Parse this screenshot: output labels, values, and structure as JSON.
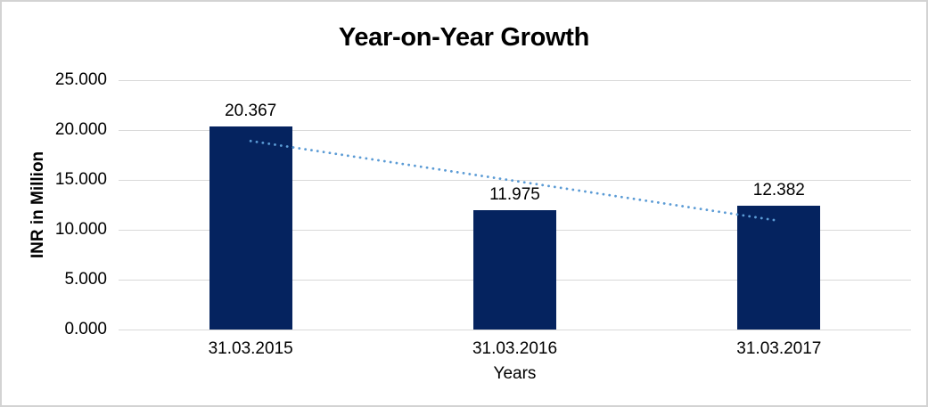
{
  "chart_data": {
    "type": "bar",
    "title": "Year-on-Year Growth",
    "categories": [
      "31.03.2015",
      "31.03.2016",
      "31.03.2017"
    ],
    "values": [
      20.367,
      11.975,
      12.382
    ],
    "data_labels": [
      "20.367",
      "11.975",
      "12.382"
    ],
    "xlabel": "Years",
    "ylabel": "INR in Million",
    "ylim": [
      0,
      25
    ],
    "ytick_step": 5,
    "ytick_labels": [
      "0.000",
      "5.000",
      "10.000",
      "15.000",
      "20.000",
      "25.000"
    ],
    "grid": true,
    "legend": "none",
    "trendline": {
      "type": "linear",
      "style": "dotted",
      "x_categories": [
        "31.03.2015",
        "31.03.2017"
      ],
      "y_values": [
        18.9,
        10.9
      ]
    },
    "colors": {
      "bar": "#05235F",
      "trendline": "#5B9BD5",
      "gridline": "#D9D9D9",
      "text": "#000000",
      "frame_border": "#D3D3D3",
      "background": "#FFFFFF"
    }
  }
}
